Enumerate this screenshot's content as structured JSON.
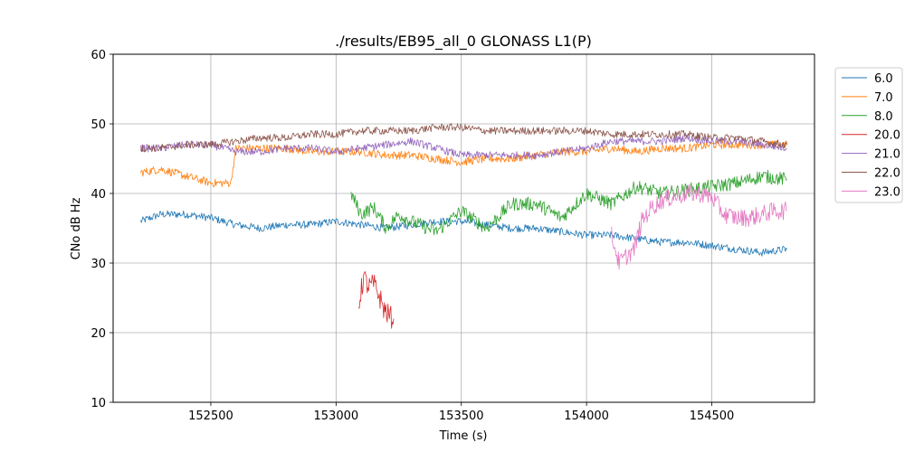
{
  "chart_data": {
    "type": "line",
    "title": "./results/EB95_all_0 GLONASS L1(P)",
    "xlabel": "Time (s)",
    "ylabel": "CNo dB Hz",
    "xlim": [
      152110,
      154910
    ],
    "ylim": [
      10,
      60
    ],
    "xticks": [
      152500,
      153000,
      153500,
      154000,
      154500
    ],
    "yticks": [
      10,
      20,
      30,
      40,
      50,
      60
    ],
    "grid": true,
    "legend_placement": "right-outside-top",
    "series": [
      {
        "name": "6.0",
        "color": "#1f77b4",
        "x": [
          152220,
          152300,
          152400,
          152500,
          152600,
          152700,
          152800,
          152900,
          153000,
          153100,
          153200,
          153300,
          153400,
          153500,
          153600,
          153700,
          153800,
          153900,
          154000,
          154100,
          154200,
          154300,
          154400,
          154500,
          154600,
          154700,
          154800
        ],
        "y": [
          36.0,
          37.0,
          37.0,
          36.5,
          35.5,
          35.0,
          35.5,
          35.5,
          36.0,
          35.5,
          35.0,
          35.5,
          36.0,
          36.0,
          35.5,
          35.0,
          35.0,
          34.5,
          34.0,
          34.0,
          33.5,
          33.0,
          33.0,
          32.5,
          32.0,
          31.5,
          32.0
        ]
      },
      {
        "name": "7.0",
        "color": "#ff7f0e",
        "x": [
          152220,
          152300,
          152400,
          152500,
          152580,
          152600,
          152700,
          152800,
          152900,
          153000,
          153100,
          153200,
          153300,
          153400,
          153500,
          153600,
          153700,
          153800,
          153900,
          154000,
          154100,
          154200,
          154300,
          154400,
          154500,
          154600,
          154700,
          154800
        ],
        "y": [
          43.0,
          43.5,
          42.5,
          41.5,
          41.5,
          46.5,
          46.5,
          46.5,
          46.0,
          46.0,
          46.0,
          45.5,
          45.5,
          45.0,
          44.5,
          45.0,
          45.0,
          45.5,
          46.0,
          46.0,
          46.5,
          46.0,
          46.5,
          46.5,
          47.0,
          47.0,
          47.0,
          47.0
        ]
      },
      {
        "name": "8.0",
        "color": "#2ca02c",
        "x": [
          153060,
          153100,
          153150,
          153200,
          153250,
          153300,
          153400,
          153500,
          153600,
          153700,
          153800,
          153900,
          154000,
          154100,
          154200,
          154300,
          154400,
          154500,
          154600,
          154700,
          154800
        ],
        "y": [
          40.0,
          37.0,
          38.0,
          35.0,
          37.0,
          36.0,
          34.5,
          37.5,
          35.0,
          38.5,
          38.5,
          36.5,
          40.0,
          38.5,
          41.0,
          40.0,
          40.5,
          41.0,
          41.5,
          42.5,
          42.0
        ]
      },
      {
        "name": "20.0",
        "color": "#d62728",
        "x": [
          153090,
          153110,
          153130,
          153150,
          153170,
          153190,
          153210,
          153230
        ],
        "y": [
          24.0,
          28.0,
          26.5,
          27.0,
          25.5,
          23.5,
          22.5,
          22.0
        ]
      },
      {
        "name": "21.0",
        "color": "#9467bd",
        "x": [
          152220,
          152300,
          152400,
          152500,
          152600,
          152700,
          152800,
          152900,
          153000,
          153100,
          153200,
          153300,
          153400,
          153500,
          153600,
          153700,
          153800,
          153900,
          154000,
          154100,
          154200,
          154300,
          154400,
          154500,
          154600,
          154700,
          154800
        ],
        "y": [
          46.5,
          46.5,
          47.0,
          47.0,
          46.0,
          46.0,
          46.5,
          46.5,
          46.0,
          46.5,
          47.0,
          47.5,
          46.5,
          45.5,
          45.5,
          45.5,
          45.5,
          46.0,
          46.5,
          47.5,
          47.5,
          47.5,
          48.0,
          47.5,
          47.5,
          47.0,
          46.5
        ]
      },
      {
        "name": "22.0",
        "color": "#8c564b",
        "x": [
          152220,
          152300,
          152400,
          152500,
          152600,
          152700,
          152800,
          152900,
          153000,
          153100,
          153200,
          153300,
          153400,
          153500,
          153600,
          153700,
          153800,
          153900,
          154000,
          154100,
          154200,
          154300,
          154400,
          154500,
          154600,
          154700,
          154800
        ],
        "y": [
          46.5,
          46.5,
          47.0,
          47.0,
          47.5,
          48.0,
          48.0,
          48.5,
          48.5,
          49.0,
          49.0,
          49.0,
          49.5,
          49.5,
          49.0,
          49.0,
          49.0,
          49.0,
          49.0,
          48.5,
          48.5,
          48.5,
          48.5,
          48.0,
          48.0,
          47.5,
          47.0
        ]
      },
      {
        "name": "23.0",
        "color": "#e377c2",
        "x": [
          154100,
          154130,
          154160,
          154190,
          154220,
          154260,
          154300,
          154350,
          154400,
          154450,
          154500,
          154550,
          154600,
          154650,
          154700,
          154750,
          154800
        ],
        "y": [
          34.0,
          30.0,
          31.0,
          32.0,
          36.0,
          38.0,
          39.0,
          39.5,
          40.0,
          40.0,
          39.5,
          37.0,
          36.5,
          36.5,
          37.0,
          37.5,
          37.5
        ]
      }
    ]
  }
}
